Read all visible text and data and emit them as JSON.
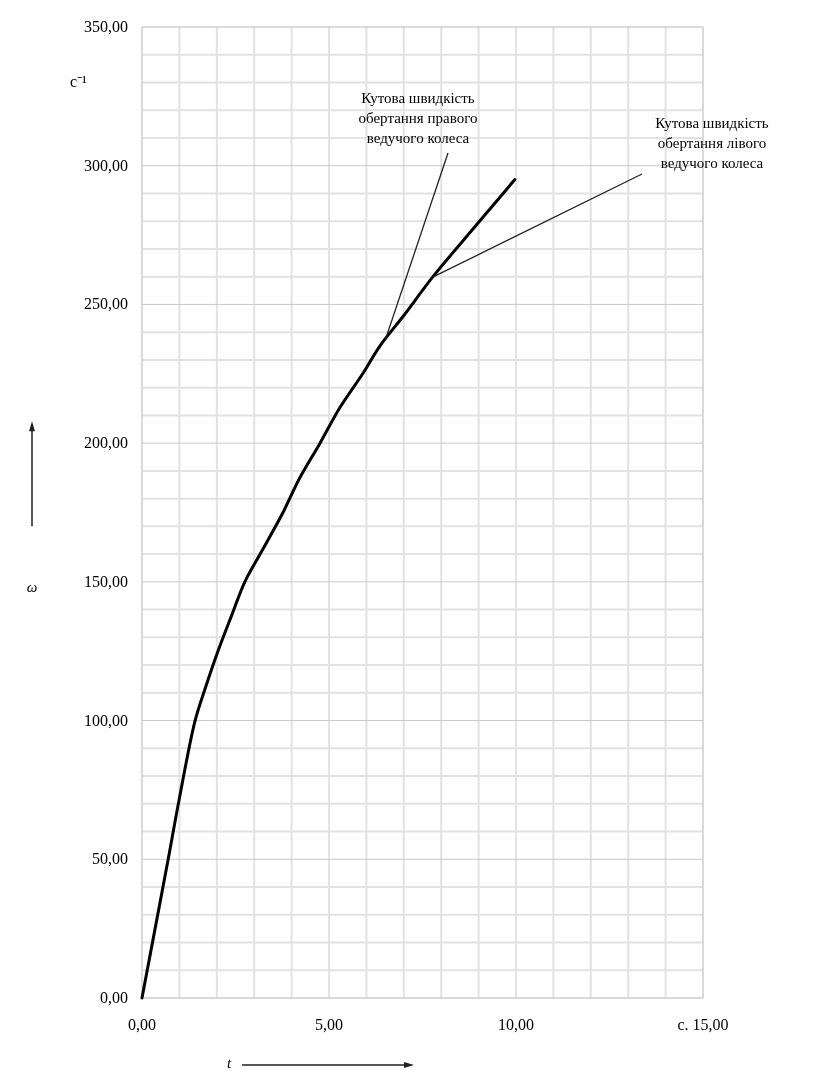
{
  "chart_data": {
    "type": "line",
    "xlabel": "t",
    "ylabel": "ω",
    "annotations": [
      "с⁻¹",
      {
        "text": "Кутова швидкість обертання правого ведучого колеса",
        "x": 6.5,
        "y": 237
      },
      {
        "text": "Кутова швидкість обертання лівого ведучого колеса",
        "x": 7.8,
        "y": 260
      }
    ],
    "series": [
      {
        "color": "#000000",
        "x": [
          0,
          0.35,
          0.7,
          1.0,
          1.42,
          1.7,
          2.03,
          2.4,
          2.75,
          3.2,
          3.77,
          4.2,
          4.76,
          5.3,
          5.9,
          6.36,
          7.0,
          7.78,
          8.9,
          9.97
        ],
        "values": [
          0,
          25,
          50,
          72,
          100,
          112,
          125,
          138,
          150,
          161,
          175,
          187,
          200,
          213,
          225,
          235,
          246,
          260,
          278,
          295
        ]
      }
    ],
    "xlim": [
      0,
      15
    ],
    "ylim": [
      0,
      350
    ],
    "xticks": [
      {
        "value": 0,
        "label": "0,00"
      },
      {
        "value": 1,
        "label": null
      },
      {
        "value": 2,
        "label": null
      },
      {
        "value": 3,
        "label": null
      },
      {
        "value": 4,
        "label": null
      },
      {
        "value": 5,
        "label": "5,00"
      },
      {
        "value": 6,
        "label": null
      },
      {
        "value": 7,
        "label": null
      },
      {
        "value": 8,
        "label": null
      },
      {
        "value": 9,
        "label": null
      },
      {
        "value": 10,
        "label": "10,00"
      },
      {
        "value": 11,
        "label": null
      },
      {
        "value": 12,
        "label": null
      },
      {
        "value": 13,
        "label": null
      },
      {
        "value": 14,
        "label": null
      },
      {
        "value": 15,
        "label": "с. 15,00"
      }
    ],
    "yticks": [
      {
        "value": 0,
        "label": "0,00"
      },
      {
        "value": 10,
        "label": null
      },
      {
        "value": 20,
        "label": null
      },
      {
        "value": 30,
        "label": null
      },
      {
        "value": 40,
        "label": null
      },
      {
        "value": 50,
        "label": "50,00"
      },
      {
        "value": 60,
        "label": null
      },
      {
        "value": 70,
        "label": null
      },
      {
        "value": 80,
        "label": null
      },
      {
        "value": 90,
        "label": null
      },
      {
        "value": 100,
        "label": "100,00"
      },
      {
        "value": 110,
        "label": null
      },
      {
        "value": 120,
        "label": null
      },
      {
        "value": 130,
        "label": null
      },
      {
        "value": 140,
        "label": null
      },
      {
        "value": 150,
        "label": "150,00"
      },
      {
        "value": 160,
        "label": null
      },
      {
        "value": 170,
        "label": null
      },
      {
        "value": 180,
        "label": null
      },
      {
        "value": 190,
        "label": null
      },
      {
        "value": 200,
        "label": "200,00"
      },
      {
        "value": 210,
        "label": null
      },
      {
        "value": 220,
        "label": null
      },
      {
        "value": 230,
        "label": null
      },
      {
        "value": 240,
        "label": null
      },
      {
        "value": 250,
        "label": "250,00"
      },
      {
        "value": 260,
        "label": null
      },
      {
        "value": 270,
        "label": null
      },
      {
        "value": 280,
        "label": null
      },
      {
        "value": 290,
        "label": null
      },
      {
        "value": 300,
        "label": "300,00"
      },
      {
        "value": 310,
        "label": null
      },
      {
        "value": 320,
        "label": null
      },
      {
        "value": 330,
        "label": null
      },
      {
        "value": 340,
        "label": null
      },
      {
        "value": 350,
        "label": "350,00"
      }
    ],
    "grid": true,
    "marker": "none",
    "line_style": "solid"
  }
}
